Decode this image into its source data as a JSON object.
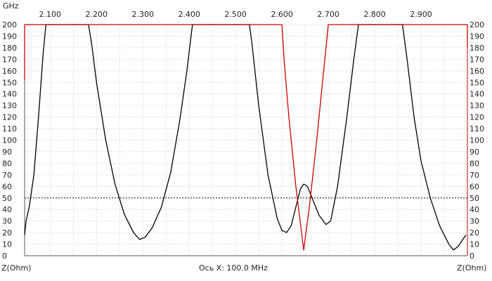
{
  "chart_data": {
    "type": "line",
    "x_unit_label": "GHz",
    "x_ticks": [
      "2.100",
      "2.200",
      "2.300",
      "2.400",
      "2.500",
      "2.600",
      "2.700",
      "2.800",
      "2.900"
    ],
    "xlim": [
      2.045,
      3.0
    ],
    "ylim": [
      0,
      200
    ],
    "y_ticks": [
      0,
      10,
      20,
      30,
      40,
      50,
      60,
      70,
      80,
      90,
      100,
      110,
      120,
      130,
      140,
      150,
      160,
      170,
      180,
      190,
      200
    ],
    "left_axis_label": "Z(Ohm)",
    "right_axis_label": "Z(Ohm)",
    "bottom_center_label": "Ось X: 100.0 MHz",
    "reference_line": 50,
    "grid": true,
    "colors": {
      "series_black": "#000000",
      "series_red": "#cc0000",
      "grid": "#bdbdbd",
      "axis": "#555555",
      "right_axis": "#cc0000"
    },
    "series": [
      {
        "color": "black",
        "points": [
          [
            2.045,
            18
          ],
          [
            2.048,
            30
          ],
          [
            2.055,
            42
          ],
          [
            2.065,
            70
          ],
          [
            2.075,
            120
          ],
          [
            2.085,
            175
          ],
          [
            2.091,
            200
          ],
          [
            2.183,
            200
          ],
          [
            2.19,
            182
          ],
          [
            2.2,
            150
          ],
          [
            2.22,
            100
          ],
          [
            2.24,
            62
          ],
          [
            2.26,
            36
          ],
          [
            2.28,
            20
          ],
          [
            2.293,
            14
          ],
          [
            2.305,
            16
          ],
          [
            2.32,
            24
          ],
          [
            2.34,
            42
          ],
          [
            2.36,
            72
          ],
          [
            2.38,
            118
          ],
          [
            2.395,
            160
          ],
          [
            2.407,
            200
          ],
          [
            2.53,
            200
          ],
          [
            2.535,
            185
          ],
          [
            2.55,
            130
          ],
          [
            2.57,
            70
          ],
          [
            2.59,
            32
          ],
          [
            2.6,
            22
          ],
          [
            2.61,
            20
          ],
          [
            2.62,
            26
          ],
          [
            2.63,
            42
          ],
          [
            2.64,
            58
          ],
          [
            2.647,
            62
          ],
          [
            2.655,
            60
          ],
          [
            2.665,
            50
          ],
          [
            2.68,
            35
          ],
          [
            2.695,
            27
          ],
          [
            2.705,
            30
          ],
          [
            2.72,
            60
          ],
          [
            2.74,
            120
          ],
          [
            2.755,
            170
          ],
          [
            2.765,
            200
          ],
          [
            2.86,
            200
          ],
          [
            2.87,
            170
          ],
          [
            2.885,
            120
          ],
          [
            2.9,
            82
          ],
          [
            2.92,
            50
          ],
          [
            2.94,
            26
          ],
          [
            2.96,
            10
          ],
          [
            2.97,
            5
          ],
          [
            2.98,
            8
          ],
          [
            2.99,
            14
          ],
          [
            2.997,
            18
          ]
        ]
      },
      {
        "color": "red",
        "points": [
          [
            2.045,
            152
          ],
          [
            2.045,
            200
          ],
          [
            2.6,
            200
          ],
          [
            2.605,
            168
          ],
          [
            2.615,
            120
          ],
          [
            2.63,
            60
          ],
          [
            2.647,
            5
          ],
          [
            2.66,
            45
          ],
          [
            2.675,
            100
          ],
          [
            2.69,
            160
          ],
          [
            2.7,
            200
          ],
          [
            3.0,
            200
          ],
          [
            3.0,
            180
          ]
        ]
      }
    ]
  }
}
